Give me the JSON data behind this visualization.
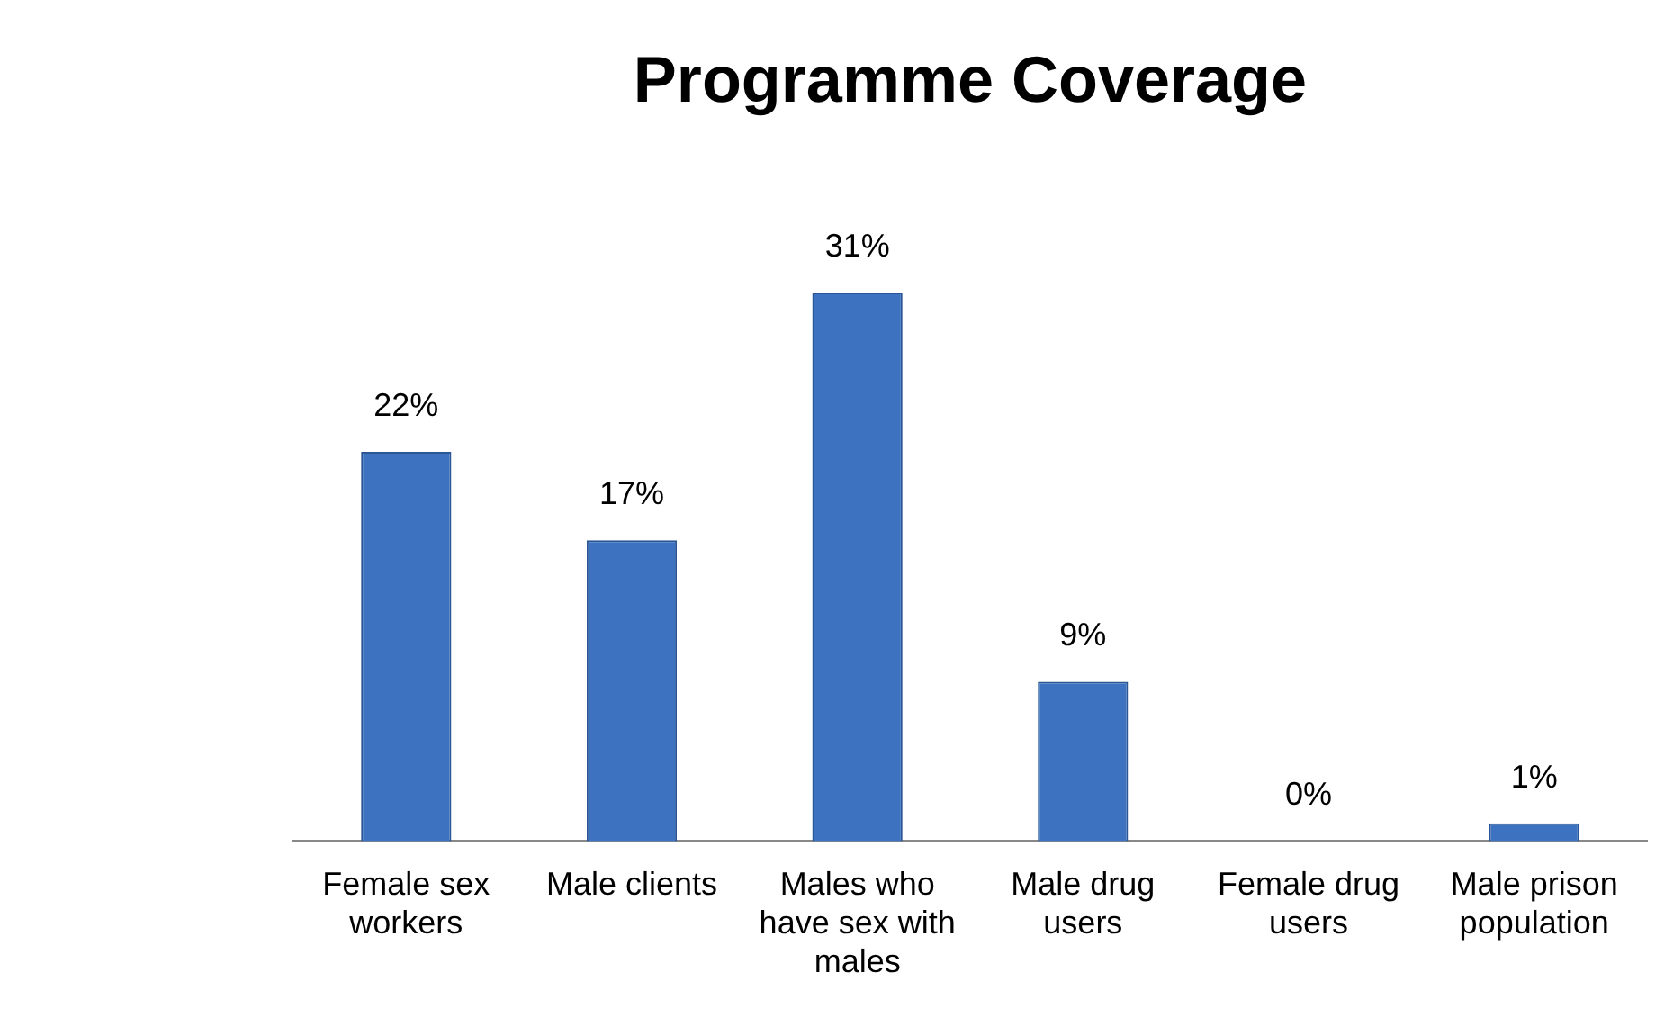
{
  "chart_data": {
    "type": "bar",
    "title": "Programme Coverage",
    "categories": [
      "Female sex workers",
      "Male clients",
      "Males who have sex with males",
      "Male drug users",
      "Female drug users",
      "Male prison population"
    ],
    "values": [
      22,
      17,
      31,
      9,
      0,
      1
    ],
    "value_labels": [
      "22%",
      "17%",
      "31%",
      "9%",
      "0%",
      "1%"
    ],
    "color": "#3d72c0",
    "grid": false,
    "legend": false
  }
}
